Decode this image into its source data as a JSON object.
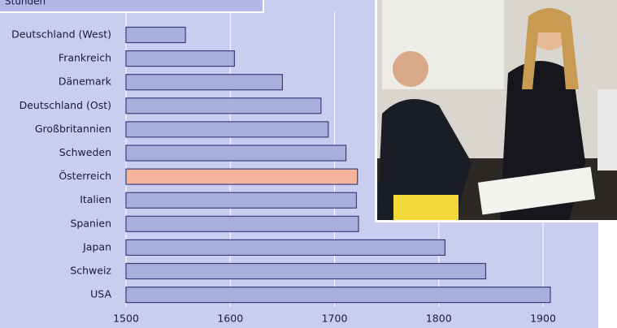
{
  "chart_data": {
    "type": "barh",
    "title": "Stunden",
    "categories": [
      "Deutschland (West)",
      "Frankreich",
      "Dänemark",
      "Deutschland (Ost)",
      "Großbritannien",
      "Schweden",
      "Österreich",
      "Italien",
      "Spanien",
      "Japan",
      "Schweiz",
      "USA"
    ],
    "values": [
      1557,
      1604,
      1650,
      1687,
      1694,
      1711,
      1722,
      1721,
      1723,
      1806,
      1845,
      1907
    ],
    "colors": [
      "#a9afdb",
      "#a9afdb",
      "#a9afdb",
      "#a9afdb",
      "#a9afdb",
      "#a9afdb",
      "#f4b49e",
      "#a9afdb",
      "#a9afdb",
      "#a9afdb",
      "#a9afdb",
      "#a9afdb"
    ],
    "xlim": [
      1500,
      1900
    ],
    "xticks": [
      1500,
      1600,
      1700,
      1800,
      1900
    ],
    "grid": true
  }
}
